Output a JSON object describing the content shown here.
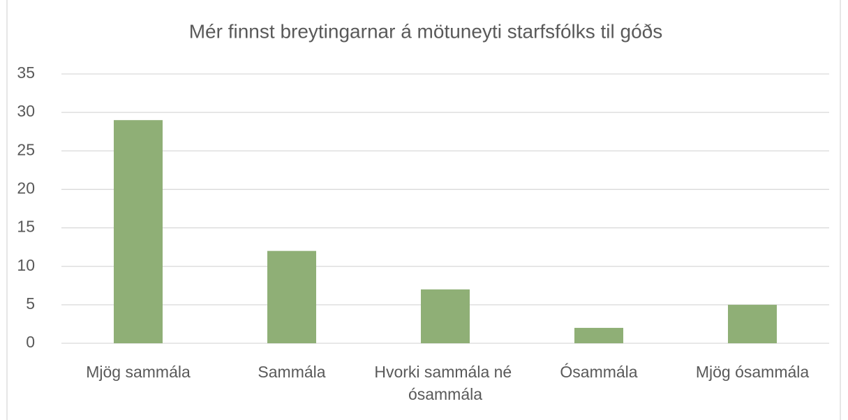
{
  "chart_data": {
    "type": "bar",
    "title": "Mér finnst breytingarnar á mötuneyti starfsfólks til góðs",
    "categories": [
      "Mjög sammála",
      "Sammála",
      "Hvorki sammála né ósammála",
      "Ósammála",
      "Mjög ósammála"
    ],
    "values": [
      29,
      12,
      7,
      2,
      5
    ],
    "color": "#8faf76",
    "ylim": [
      0,
      35
    ],
    "yticks": [
      0,
      5,
      10,
      15,
      20,
      25,
      30,
      35
    ],
    "grid": true
  }
}
